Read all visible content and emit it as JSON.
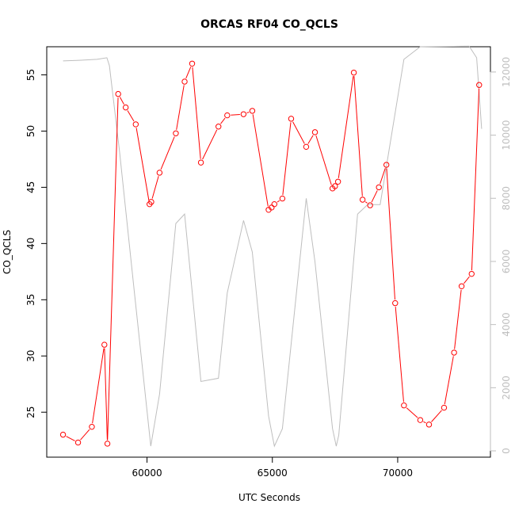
{
  "chart_data": {
    "type": "line",
    "title": "ORCAS RF04 CO_QCLS",
    "xlabel": "UTC Seconds",
    "ylabel": "CO_QCLS",
    "xlim": [
      56000,
      73700
    ],
    "ylim": [
      21.0,
      57.5
    ],
    "y2lim": [
      -200,
      12800
    ],
    "xticks": [
      60000,
      65000,
      70000
    ],
    "yticks": [
      25,
      30,
      35,
      40,
      45,
      50,
      55
    ],
    "y2ticks": [
      0,
      2000,
      4000,
      6000,
      8000,
      10000,
      12000
    ],
    "series": [
      {
        "name": "",
        "color": "#ff0000",
        "axis": "left",
        "style": "line+points",
        "x": [
          56650,
          57250,
          57800,
          58300,
          58420,
          58850,
          59150,
          59550,
          60100,
          60170,
          60500,
          61150,
          61500,
          61800,
          62150,
          62850,
          63200,
          63850,
          64200,
          64850,
          64970,
          65080,
          65400,
          65750,
          66350,
          66700,
          67400,
          67500,
          67620,
          68250,
          68600,
          68900,
          69250,
          69550,
          69900,
          70250,
          70900,
          71250,
          71850,
          72250,
          72550,
          72950,
          73250
        ],
        "y": [
          23.0,
          22.3,
          23.7,
          31.0,
          22.2,
          53.3,
          52.1,
          50.6,
          43.5,
          43.7,
          46.3,
          49.8,
          54.4,
          56.0,
          47.2,
          50.4,
          51.4,
          51.5,
          51.8,
          43.0,
          43.2,
          43.5,
          44.0,
          51.1,
          48.6,
          49.9,
          44.9,
          45.1,
          45.5,
          55.2,
          43.9,
          43.4,
          45.0,
          47.0,
          34.7,
          25.6,
          24.3,
          23.9,
          25.4,
          30.3,
          36.2,
          37.3,
          54.1
        ]
      },
      {
        "name": "",
        "color": "#bebebe",
        "axis": "right",
        "style": "line",
        "x": [
          56650,
          57300,
          58000,
          58400,
          58500,
          58900,
          59500,
          60150,
          60500,
          61150,
          61500,
          62150,
          62850,
          63200,
          63850,
          64200,
          64850,
          65080,
          65400,
          66350,
          66700,
          67400,
          67550,
          67650,
          68400,
          68800,
          69300,
          70250,
          70900,
          72850,
          73150,
          73350
        ],
        "y": [
          12350,
          12370,
          12400,
          12450,
          12200,
          9500,
          5000,
          150,
          1800,
          7200,
          7500,
          2200,
          2300,
          5000,
          7300,
          6300,
          1100,
          150,
          700,
          8000,
          6000,
          700,
          150,
          500,
          7500,
          7800,
          7800,
          12400,
          12800,
          12820,
          12450,
          10200
        ]
      }
    ]
  }
}
